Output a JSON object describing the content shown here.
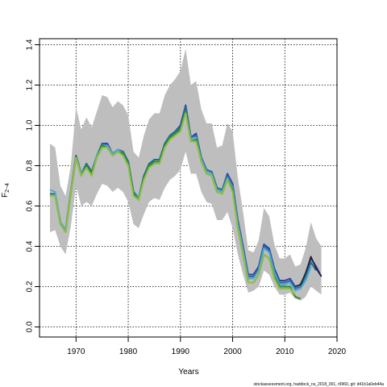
{
  "chart_data": {
    "type": "line",
    "xlabel": "Years",
    "ylabel_main": "F",
    "ylabel_sub": "2−4",
    "footer": "stockassessment.org,  haddock_ns_2018_001,  r9960,  git: d41b1a0eb44a",
    "xlim": [
      1963,
      2020
    ],
    "ylim": [
      -0.05,
      1.43
    ],
    "x_ticks": [
      1970,
      1980,
      1990,
      2000,
      2010,
      2020
    ],
    "y_ticks": [
      0.0,
      0.2,
      0.4,
      0.6,
      0.8,
      1.0,
      1.2,
      1.4
    ],
    "grid": true,
    "band_color": "#bebebe",
    "band": {
      "x": [
        1965,
        1966,
        1967,
        1968,
        1969,
        1970,
        1971,
        1972,
        1973,
        1974,
        1975,
        1976,
        1977,
        1978,
        1979,
        1980,
        1981,
        1982,
        1983,
        1984,
        1985,
        1986,
        1987,
        1988,
        1989,
        1990,
        1991,
        1992,
        1993,
        1994,
        1995,
        1996,
        1997,
        1998,
        1999,
        2000,
        2001,
        2002,
        2003,
        2004,
        2005,
        2006,
        2007,
        2008,
        2009,
        2010,
        2011,
        2012,
        2013,
        2014,
        2015,
        2016,
        2017
      ],
      "lower": [
        0.47,
        0.48,
        0.4,
        0.36,
        0.5,
        0.7,
        0.6,
        0.62,
        0.6,
        0.66,
        0.71,
        0.7,
        0.67,
        0.69,
        0.67,
        0.62,
        0.51,
        0.49,
        0.56,
        0.62,
        0.64,
        0.63,
        0.69,
        0.73,
        0.75,
        0.78,
        0.87,
        0.76,
        0.76,
        0.67,
        0.62,
        0.61,
        0.53,
        0.53,
        0.57,
        0.49,
        0.36,
        0.26,
        0.17,
        0.18,
        0.2,
        0.28,
        0.26,
        0.2,
        0.16,
        0.16,
        0.17,
        0.14,
        0.13,
        0.15,
        0.2,
        0.18,
        0.16
      ],
      "upper": [
        0.91,
        0.89,
        0.7,
        0.65,
        0.8,
        1.09,
        0.98,
        1.04,
        0.99,
        1.07,
        1.15,
        1.14,
        1.09,
        1.12,
        1.1,
        1.05,
        0.87,
        0.84,
        0.95,
        1.03,
        1.06,
        1.06,
        1.15,
        1.2,
        1.23,
        1.27,
        1.38,
        1.2,
        1.22,
        1.08,
        1.01,
        1.01,
        0.89,
        0.9,
        1.01,
        0.97,
        0.74,
        0.57,
        0.38,
        0.37,
        0.43,
        0.59,
        0.55,
        0.41,
        0.34,
        0.34,
        0.36,
        0.3,
        0.31,
        0.39,
        0.52,
        0.44,
        0.4
      ]
    },
    "series": [
      {
        "color": "#3b3bb8",
        "x": [
          1965,
          1966,
          1967,
          1968,
          1969,
          1970,
          1971,
          1972,
          1973,
          1974,
          1975,
          1976,
          1977,
          1978,
          1979,
          1980,
          1981,
          1982,
          1983,
          1984,
          1985,
          1986,
          1987,
          1988,
          1989,
          1990,
          1991,
          1992,
          1993,
          1994,
          1995,
          1996,
          1997,
          1998,
          1999,
          2000,
          2001,
          2002,
          2003,
          2004,
          2005,
          2006,
          2007,
          2008,
          2009,
          2010,
          2011,
          2012,
          2013,
          2014,
          2015,
          2016,
          2017
        ],
        "y": [
          0.66,
          0.66,
          0.52,
          0.48,
          0.67,
          0.85,
          0.76,
          0.81,
          0.77,
          0.85,
          0.91,
          0.91,
          0.86,
          0.88,
          0.87,
          0.82,
          0.67,
          0.64,
          0.75,
          0.81,
          0.83,
          0.83,
          0.91,
          0.95,
          0.97,
          1.0,
          1.1,
          0.94,
          0.96,
          0.84,
          0.78,
          0.77,
          0.69,
          0.68,
          0.76,
          0.71,
          0.53,
          0.4,
          0.26,
          0.26,
          0.3,
          0.41,
          0.39,
          0.29,
          0.23,
          0.23,
          0.24,
          0.2,
          0.21,
          0.26,
          0.34,
          0.3,
          0.25
        ]
      },
      {
        "color": "#1f6f8f",
        "x": [
          1965,
          1966,
          1967,
          1968,
          1969,
          1970,
          1971,
          1972,
          1973,
          1974,
          1975,
          1976,
          1977,
          1978,
          1979,
          1980,
          1981,
          1982,
          1983,
          1984,
          1985,
          1986,
          1987,
          1988,
          1989,
          1990,
          1991,
          1992,
          1993,
          1994,
          1995,
          1996,
          1997,
          1998,
          1999,
          2000,
          2001,
          2002,
          2003,
          2004,
          2005,
          2006,
          2007,
          2008,
          2009,
          2010,
          2011,
          2012,
          2013,
          2014,
          2015,
          2016
        ],
        "y": [
          0.66,
          0.66,
          0.52,
          0.48,
          0.67,
          0.85,
          0.76,
          0.81,
          0.77,
          0.85,
          0.91,
          0.9,
          0.86,
          0.88,
          0.87,
          0.82,
          0.67,
          0.64,
          0.75,
          0.81,
          0.83,
          0.83,
          0.91,
          0.95,
          0.97,
          0.99,
          1.09,
          0.94,
          0.95,
          0.84,
          0.78,
          0.77,
          0.69,
          0.68,
          0.75,
          0.7,
          0.52,
          0.39,
          0.25,
          0.25,
          0.29,
          0.4,
          0.38,
          0.28,
          0.22,
          0.22,
          0.23,
          0.19,
          0.2,
          0.25,
          0.32,
          0.28
        ]
      },
      {
        "color": "#4fa8d8",
        "x": [
          1965,
          1966,
          1967,
          1968,
          1969,
          1970,
          1971,
          1972,
          1973,
          1974,
          1975,
          1976,
          1977,
          1978,
          1979,
          1980,
          1981,
          1982,
          1983,
          1984,
          1985,
          1986,
          1987,
          1988,
          1989,
          1990,
          1991,
          1992,
          1993,
          1994,
          1995,
          1996,
          1997,
          1998,
          1999,
          2000,
          2001,
          2002,
          2003,
          2004,
          2005,
          2006,
          2007,
          2008,
          2009,
          2010,
          2011,
          2012,
          2013,
          2014,
          2015
        ],
        "y": [
          0.68,
          0.67,
          0.52,
          0.48,
          0.67,
          0.84,
          0.76,
          0.8,
          0.76,
          0.85,
          0.9,
          0.9,
          0.86,
          0.88,
          0.86,
          0.81,
          0.66,
          0.64,
          0.74,
          0.8,
          0.82,
          0.82,
          0.9,
          0.94,
          0.96,
          0.98,
          1.07,
          0.93,
          0.94,
          0.83,
          0.77,
          0.76,
          0.68,
          0.67,
          0.74,
          0.69,
          0.51,
          0.38,
          0.24,
          0.24,
          0.28,
          0.39,
          0.37,
          0.27,
          0.21,
          0.21,
          0.22,
          0.18,
          0.19,
          0.23,
          0.3
        ]
      },
      {
        "color": "#2e8b2e",
        "x": [
          1965,
          1966,
          1967,
          1968,
          1969,
          1970,
          1971,
          1972,
          1973,
          1974,
          1975,
          1976,
          1977,
          1978,
          1979,
          1980,
          1981,
          1982,
          1983,
          1984,
          1985,
          1986,
          1987,
          1988,
          1989,
          1990,
          1991,
          1992,
          1993,
          1994,
          1995,
          1996,
          1997,
          1998,
          1999,
          2000,
          2001,
          2002,
          2003,
          2004,
          2005,
          2006,
          2007,
          2008,
          2009,
          2010,
          2011,
          2012,
          2013
        ],
        "y": [
          0.65,
          0.65,
          0.51,
          0.47,
          0.66,
          0.84,
          0.75,
          0.8,
          0.76,
          0.84,
          0.9,
          0.89,
          0.85,
          0.87,
          0.86,
          0.81,
          0.66,
          0.63,
          0.74,
          0.8,
          0.82,
          0.82,
          0.9,
          0.94,
          0.96,
          0.98,
          1.07,
          0.92,
          0.93,
          0.82,
          0.76,
          0.75,
          0.67,
          0.66,
          0.73,
          0.68,
          0.49,
          0.36,
          0.22,
          0.22,
          0.26,
          0.36,
          0.34,
          0.25,
          0.2,
          0.2,
          0.2,
          0.15,
          0.14
        ]
      },
      {
        "color": "#8fbf3f",
        "x": [
          1965,
          1966,
          1967,
          1968,
          1969,
          1970,
          1971,
          1972,
          1973,
          1974,
          1975,
          1976,
          1977,
          1978,
          1979,
          1980,
          1981,
          1982,
          1983,
          1984,
          1985,
          1986,
          1987,
          1988,
          1989,
          1990,
          1991,
          1992,
          1993,
          1994,
          1995,
          1996,
          1997,
          1998,
          1999,
          2000,
          2001,
          2002,
          2003,
          2004,
          2005,
          2006,
          2007,
          2008,
          2009,
          2010,
          2011,
          2012
        ],
        "y": [
          0.65,
          0.65,
          0.51,
          0.47,
          0.66,
          0.84,
          0.75,
          0.79,
          0.75,
          0.84,
          0.89,
          0.89,
          0.85,
          0.87,
          0.85,
          0.8,
          0.65,
          0.63,
          0.73,
          0.79,
          0.81,
          0.81,
          0.89,
          0.93,
          0.95,
          0.97,
          1.06,
          0.92,
          0.92,
          0.82,
          0.76,
          0.75,
          0.67,
          0.66,
          0.73,
          0.67,
          0.49,
          0.36,
          0.22,
          0.22,
          0.26,
          0.36,
          0.34,
          0.24,
          0.19,
          0.19,
          0.19,
          0.16
        ]
      },
      {
        "color": "#1a1a1a",
        "x": [
          2012,
          2013,
          2014,
          2015,
          2016,
          2017
        ],
        "y": [
          0.2,
          0.21,
          0.27,
          0.35,
          0.29,
          0.25
        ]
      }
    ]
  }
}
